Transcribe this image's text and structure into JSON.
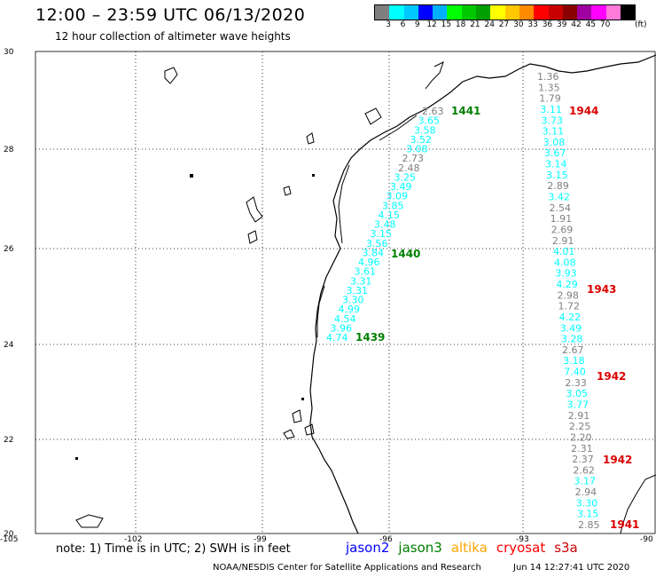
{
  "title": "12:00 – 23:59 UTC 06/13/2020",
  "subtitle": "12 hour collection of altimeter wave heights",
  "colorbar": {
    "colors": [
      "#7f7f7f",
      "#00ffff",
      "#00c8ff",
      "#0000ff",
      "#00b0ff",
      "#00ff00",
      "#00c800",
      "#00a000",
      "#ffff00",
      "#ffc800",
      "#ff8c00",
      "#ff0000",
      "#c80000",
      "#8b0000",
      "#a000a0",
      "#ff00ff",
      "#ff7ad9",
      "#000000"
    ],
    "ticks": [
      "3",
      "6",
      "9",
      "12",
      "15",
      "18",
      "21",
      "24",
      "27",
      "30",
      "33",
      "36",
      "39",
      "42",
      "45",
      "70"
    ],
    "unit": "(ft)"
  },
  "map": {
    "lat_labels": [
      "30",
      "28",
      "26",
      "24",
      "22",
      "20"
    ],
    "lon_labels": [
      "-105",
      "-102",
      "-99",
      "-96",
      "-93",
      "-90"
    ]
  },
  "tracks": {
    "west": {
      "labels": [
        "2.63",
        "3.65",
        "3.58",
        "3.52",
        "3.08",
        "2.73",
        "2.48",
        "3.25",
        "3.49",
        "3.09",
        "3.85",
        "4.15",
        "3.48",
        "3.15",
        "3.56",
        "3.84",
        "4.96",
        "3.61",
        "3.31",
        "3.31",
        "3.30",
        "4.99",
        "4.54",
        "3.96",
        "4.74"
      ],
      "times": [
        "1441",
        "1440",
        "1439"
      ]
    },
    "east": {
      "labels": [
        "1.36",
        "1.35",
        "1.79",
        "3.11",
        "3.73",
        "3.11",
        "3.08",
        "3.67",
        "3.14",
        "3.15",
        "2.89",
        "3.42",
        "2.54",
        "1.91",
        "2.69",
        "2.91",
        "4.01",
        "4.08",
        "3.93",
        "4.29",
        "2.98",
        "1.72",
        "4.22",
        "3.49",
        "3.28",
        "2.67",
        "3.18",
        "7.40",
        "2.33",
        "3.05",
        "3.77",
        "2.91",
        "2.25",
        "2.20",
        "2.31",
        "2.37",
        "2.62",
        "3.17",
        "2.94",
        "3.30",
        "3.15",
        "2.85"
      ],
      "times": [
        "1944",
        "1943",
        "1942",
        "1942",
        "1941"
      ]
    }
  },
  "note": "note: 1) Time is in UTC; 2) SWH is in feet",
  "legend": [
    {
      "name": "jason2",
      "color": "#0000ff"
    },
    {
      "name": "jason3",
      "color": "#008000"
    },
    {
      "name": "altika",
      "color": "#ffa500"
    },
    {
      "name": "cryosat",
      "color": "#ff0000"
    },
    {
      "name": "s3a",
      "color": "#cc0000"
    }
  ],
  "credit": "NOAA/NESDIS Center for Satellite Applications and Research",
  "timestamp": "Jun 14 12:27:41 UTC 2020"
}
